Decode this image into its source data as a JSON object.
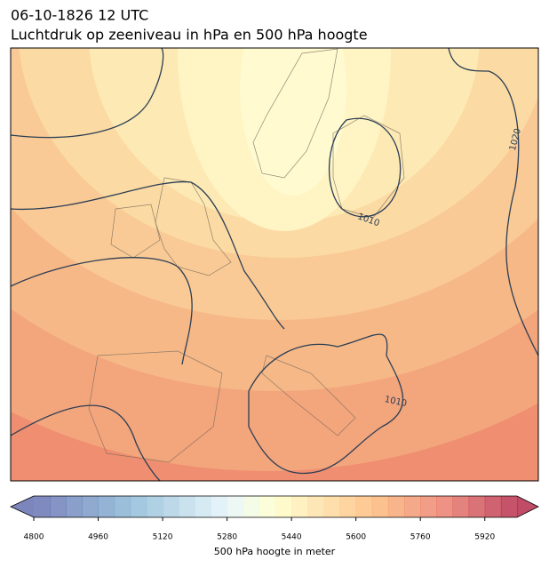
{
  "header": {
    "title": "06-10-1826 12 UTC",
    "subtitle": "Luchtdruk op zeeniveau in hPa en 500 hPa hoogte"
  },
  "map": {
    "contour_labels": [
      "1010",
      "1010",
      "1020"
    ]
  },
  "colorbar": {
    "label": "500 hPa hoogte in meter",
    "lim": [
      4800,
      6000
    ],
    "ticks": [
      4800,
      4960,
      5120,
      5280,
      5440,
      5600,
      5760,
      5920
    ]
  }
}
